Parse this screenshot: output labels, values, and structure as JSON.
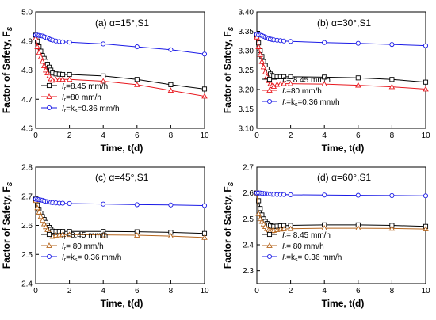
{
  "chart_data": [
    {
      "type": "line",
      "panel": "(a)",
      "title": "(a)  α=15°,S1",
      "xlabel": "Time, t(d)",
      "ylabel": "Factor of Safety, Fs",
      "ylabel_main": "Factor of Safety, F",
      "ylabel_sub": "S",
      "xlim": [
        0,
        10
      ],
      "ylim": [
        4.6,
        5.0
      ],
      "xticks": [
        0,
        2,
        4,
        6,
        8,
        10
      ],
      "yticks": [
        "4.6",
        "4.7",
        "4.8",
        "4.9",
        "5.0"
      ],
      "legend_position": "bottom-left",
      "series": [
        {
          "name": "Ir=8.45 mm/h",
          "label_main": "I",
          "label_sub": "r",
          "label_tail": "=8.45 mm/h",
          "color": "#000000",
          "marker": "square",
          "x": [
            0,
            0.1,
            0.2,
            0.3,
            0.4,
            0.5,
            0.6,
            0.7,
            0.8,
            0.9,
            1.0,
            1.2,
            1.4,
            1.6,
            2,
            4,
            6,
            8,
            10
          ],
          "y": [
            4.92,
            4.9,
            4.88,
            4.865,
            4.85,
            4.84,
            4.83,
            4.82,
            4.81,
            4.8,
            4.79,
            4.787,
            4.786,
            4.785,
            4.785,
            4.78,
            4.768,
            4.75,
            4.735
          ]
        },
        {
          "name": "Ir=80 mm/h",
          "label_main": "I",
          "label_sub": "r",
          "label_tail": "=80 mm/h",
          "color": "#e8191f",
          "marker": "triangle",
          "x": [
            0,
            0.1,
            0.2,
            0.3,
            0.4,
            0.5,
            0.6,
            0.7,
            0.8,
            0.9,
            1.0,
            1.2,
            1.4,
            1.6,
            2,
            4,
            6,
            8,
            10
          ],
          "y": [
            4.91,
            4.88,
            4.86,
            4.845,
            4.83,
            4.815,
            4.8,
            4.79,
            4.78,
            4.77,
            4.765,
            4.767,
            4.768,
            4.768,
            4.768,
            4.762,
            4.75,
            4.73,
            4.71
          ]
        },
        {
          "name": "Ir=ks=0.36 mm/h",
          "label_main": "I",
          "label_sub": "r",
          "label_tail": "=k",
          "label_sub2": "s",
          "label_tail2": "=0.36 mm/h",
          "color": "#1a1ae6",
          "marker": "circle",
          "x": [
            0,
            0.1,
            0.2,
            0.3,
            0.4,
            0.5,
            0.6,
            0.7,
            0.8,
            0.9,
            1.0,
            1.2,
            1.4,
            1.6,
            2,
            4,
            6,
            8,
            10
          ],
          "y": [
            4.92,
            4.92,
            4.919,
            4.918,
            4.917,
            4.915,
            4.912,
            4.91,
            4.907,
            4.905,
            4.903,
            4.9,
            4.898,
            4.897,
            4.896,
            4.89,
            4.88,
            4.87,
            4.855
          ]
        }
      ]
    },
    {
      "type": "line",
      "panel": "(b)",
      "title": "(b)  α=30°,S1",
      "xlabel": "Time, t(d)",
      "ylabel": "Factor of Safety, Fs",
      "ylabel_main": "Factor of Safety, F",
      "ylabel_sub": "S",
      "xlim": [
        0,
        10
      ],
      "ylim": [
        3.1,
        3.4
      ],
      "xticks": [
        0,
        2,
        4,
        6,
        8,
        10
      ],
      "yticks": [
        "3.10",
        "3.15",
        "3.20",
        "3.25",
        "3.30",
        "3.35",
        "3.40"
      ],
      "legend_position": "bottom-left",
      "series": [
        {
          "name": "Ir=8.45 mm/h",
          "label_main": "I",
          "label_sub": "r",
          "label_tail": "= 8.45 mm/h",
          "color": "#000000",
          "marker": "square",
          "x": [
            0,
            0.1,
            0.2,
            0.3,
            0.4,
            0.5,
            0.6,
            0.7,
            0.8,
            0.9,
            1.0,
            1.2,
            1.4,
            1.6,
            2,
            4,
            6,
            8,
            10
          ],
          "y": [
            3.34,
            3.32,
            3.3,
            3.285,
            3.272,
            3.262,
            3.253,
            3.245,
            3.24,
            3.236,
            3.234,
            3.233,
            3.233,
            3.233,
            3.233,
            3.232,
            3.23,
            3.226,
            3.219
          ]
        },
        {
          "name": "Ir=80 mm/h",
          "label_main": "I",
          "label_sub": "r",
          "label_tail": "=80 mm/h",
          "color": "#e8191f",
          "marker": "triangle",
          "x": [
            0,
            0.1,
            0.2,
            0.3,
            0.4,
            0.5,
            0.6,
            0.7,
            0.8,
            0.9,
            1.0,
            1.2,
            1.4,
            1.6,
            2,
            4,
            6,
            8,
            10
          ],
          "y": [
            3.335,
            3.31,
            3.29,
            3.272,
            3.258,
            3.245,
            3.233,
            3.223,
            3.215,
            3.21,
            3.208,
            3.213,
            3.214,
            3.215,
            3.215,
            3.214,
            3.211,
            3.207,
            3.201
          ]
        },
        {
          "name": "Ir=ks=0.36 mm/h",
          "label_main": "I",
          "label_sub": "r",
          "label_tail": "=k",
          "label_sub2": "s",
          "label_tail2": "=0.36 mm/h",
          "color": "#1a1ae6",
          "marker": "circle",
          "x": [
            0,
            0.1,
            0.2,
            0.3,
            0.4,
            0.5,
            0.6,
            0.7,
            0.8,
            0.9,
            1.0,
            1.2,
            1.4,
            1.6,
            2,
            4,
            6,
            8,
            10
          ],
          "y": [
            3.342,
            3.341,
            3.34,
            3.339,
            3.337,
            3.335,
            3.333,
            3.331,
            3.33,
            3.329,
            3.328,
            3.327,
            3.326,
            3.325,
            3.324,
            3.321,
            3.319,
            3.316,
            3.313
          ]
        }
      ]
    },
    {
      "type": "line",
      "panel": "(c)",
      "title": "(c)  α=45°,S1",
      "xlabel": "Time, t(d)",
      "ylabel": "Factor of Safety, Fs",
      "ylabel_main": "Factor of Safety, F",
      "ylabel_sub": "S",
      "xlim": [
        0,
        10
      ],
      "ylim": [
        2.4,
        2.8
      ],
      "xticks": [
        0,
        2,
        4,
        6,
        8,
        10
      ],
      "yticks": [
        "2.4",
        "2.5",
        "2.6",
        "2.7",
        "2.8"
      ],
      "legend_position": "bottom-left",
      "series": [
        {
          "name": "Ir=8.45 mm/h",
          "label_main": "I",
          "label_sub": "r",
          "label_tail": "=8.45 mm/h",
          "color": "#000000",
          "marker": "square",
          "x": [
            0,
            0.1,
            0.2,
            0.3,
            0.4,
            0.5,
            0.6,
            0.7,
            0.8,
            0.9,
            1.0,
            1.2,
            1.4,
            1.6,
            2,
            4,
            6,
            8,
            10
          ],
          "y": [
            2.69,
            2.67,
            2.655,
            2.642,
            2.63,
            2.62,
            2.61,
            2.6,
            2.593,
            2.586,
            2.58,
            2.579,
            2.579,
            2.579,
            2.579,
            2.579,
            2.578,
            2.576,
            2.572
          ]
        },
        {
          "name": "Ir=80 mm/h",
          "label_main": "I",
          "label_sub": "r",
          "label_tail": "= 80 mm/h",
          "color": "#b5651d",
          "marker": "triangle",
          "x": [
            0,
            0.1,
            0.2,
            0.3,
            0.4,
            0.5,
            0.6,
            0.7,
            0.8,
            0.9,
            1.0,
            1.2,
            1.4,
            1.6,
            2,
            4,
            6,
            8,
            10
          ],
          "y": [
            2.685,
            2.66,
            2.645,
            2.63,
            2.617,
            2.605,
            2.595,
            2.585,
            2.576,
            2.569,
            2.562,
            2.566,
            2.567,
            2.568,
            2.568,
            2.567,
            2.566,
            2.563,
            2.558
          ]
        },
        {
          "name": "Ir=ks=0.36 mm/h",
          "label_main": "I",
          "label_sub": "r",
          "label_tail": "=k",
          "label_sub2": "s",
          "label_tail2": "= 0.36 mm/h",
          "color": "#1a1ae6",
          "marker": "circle",
          "x": [
            0,
            0.1,
            0.2,
            0.3,
            0.4,
            0.5,
            0.6,
            0.7,
            0.8,
            0.9,
            1.0,
            1.2,
            1.4,
            1.6,
            2,
            4,
            6,
            8,
            10
          ],
          "y": [
            2.69,
            2.689,
            2.688,
            2.687,
            2.686,
            2.684,
            2.682,
            2.681,
            2.68,
            2.679,
            2.678,
            2.677,
            2.676,
            2.676,
            2.675,
            2.673,
            2.671,
            2.67,
            2.668
          ]
        }
      ]
    },
    {
      "type": "line",
      "panel": "(d)",
      "title": "(d)  α=60°,S1",
      "xlabel": "Time, t(d)",
      "ylabel": "Factor of Safety, Fs",
      "ylabel_main": "Factor of Safety, F",
      "ylabel_sub": "S",
      "xlim": [
        0,
        10
      ],
      "ylim": [
        2.25,
        2.7
      ],
      "xticks": [
        0,
        2,
        4,
        6,
        8,
        10
      ],
      "yticks": [
        "2.3",
        "2.4",
        "2.5",
        "2.6",
        "2.7"
      ],
      "legend_position": "bottom-left",
      "series": [
        {
          "name": "Ir=8.45 mm/h",
          "label_main": "I",
          "label_sub": "r",
          "label_tail": "= 8.45 mm/h",
          "color": "#000000",
          "marker": "square",
          "x": [
            0,
            0.1,
            0.2,
            0.3,
            0.4,
            0.5,
            0.6,
            0.7,
            0.8,
            0.9,
            1.0,
            1.2,
            1.4,
            1.6,
            2,
            4,
            6,
            8,
            10
          ],
          "y": [
            2.6,
            2.57,
            2.54,
            2.515,
            2.5,
            2.49,
            2.482,
            2.477,
            2.474,
            2.472,
            2.471,
            2.472,
            2.473,
            2.474,
            2.475,
            2.477,
            2.477,
            2.475,
            2.471
          ]
        },
        {
          "name": "Ir=80 mm/h",
          "label_main": "I",
          "label_sub": "r",
          "label_tail": "= 80 mm/h",
          "color": "#b5651d",
          "marker": "triangle",
          "x": [
            0,
            0.1,
            0.2,
            0.3,
            0.4,
            0.5,
            0.6,
            0.7,
            0.8,
            0.9,
            1.0,
            1.2,
            1.4,
            1.6,
            2,
            4,
            6,
            8,
            10
          ],
          "y": [
            2.6,
            2.52,
            2.5,
            2.49,
            2.48,
            2.47,
            2.462,
            2.457,
            2.455,
            2.454,
            2.455,
            2.458,
            2.46,
            2.461,
            2.462,
            2.464,
            2.464,
            2.463,
            2.461
          ]
        },
        {
          "name": "Ir=ks=0.36 mm/h",
          "label_main": "I",
          "label_sub": "r",
          "label_tail": "=k",
          "label_sub2": "s",
          "label_tail2": "= 0.36 mm/h",
          "color": "#1a1ae6",
          "marker": "circle",
          "x": [
            0,
            0.1,
            0.2,
            0.3,
            0.4,
            0.5,
            0.6,
            0.7,
            0.8,
            0.9,
            1.0,
            1.2,
            1.4,
            1.6,
            2,
            4,
            6,
            8,
            10
          ],
          "y": [
            2.6,
            2.6,
            2.6,
            2.599,
            2.598,
            2.597,
            2.597,
            2.596,
            2.596,
            2.595,
            2.595,
            2.594,
            2.594,
            2.594,
            2.593,
            2.592,
            2.591,
            2.59,
            2.589
          ]
        }
      ]
    }
  ]
}
